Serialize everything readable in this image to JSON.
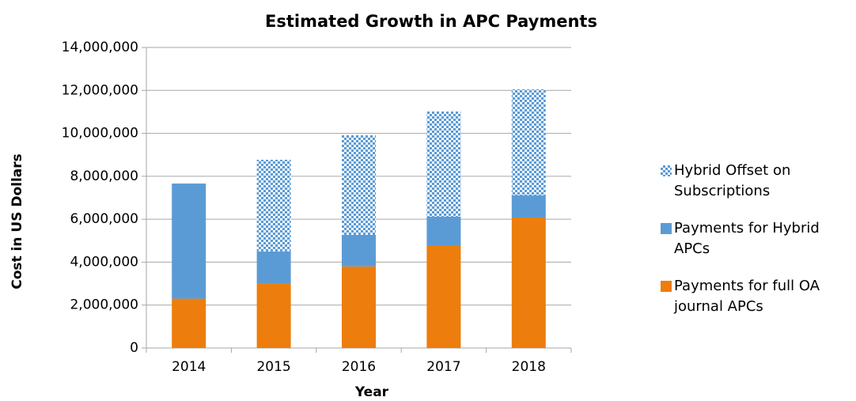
{
  "chart_data": {
    "type": "stacked_bar",
    "title": "Estimated Growth in APC Payments",
    "x_label": "Year",
    "y_label": "Cost in US Dollars",
    "categories": [
      "2014",
      "2015",
      "2016",
      "2017",
      "2018"
    ],
    "series": [
      {
        "name": "Payments for full OA journal APCs",
        "color": "#ed7d0c",
        "values": [
          2300000,
          3000000,
          3800000,
          4790000,
          6080000
        ]
      },
      {
        "name": "Payments for Hybrid APCs",
        "color": "#5b9bd5",
        "values": [
          5360000,
          1500000,
          1470000,
          1330000,
          1030000
        ]
      },
      {
        "name": "Hybrid Offset on Subscriptions",
        "color": "#5b9bd5",
        "hatch": true,
        "values": [
          0,
          4270000,
          4640000,
          4900000,
          4940000
        ]
      }
    ],
    "ylim": [
      0,
      14000000
    ],
    "yticks": [
      0,
      {
        "value": 2000000,
        "label": "2,000,000"
      },
      {
        "value": 4000000,
        "label": "4,000,000"
      },
      {
        "value": 6000000,
        "label": "6,000,000"
      },
      {
        "value": 8000000,
        "label": "8,000,000"
      },
      {
        "value": 10000000,
        "label": "10,000,000"
      },
      {
        "value": 12000000,
        "label": "12,000,000"
      },
      {
        "value": 14000000,
        "label": "14,000,000"
      }
    ],
    "grid": true,
    "legend": "right"
  }
}
